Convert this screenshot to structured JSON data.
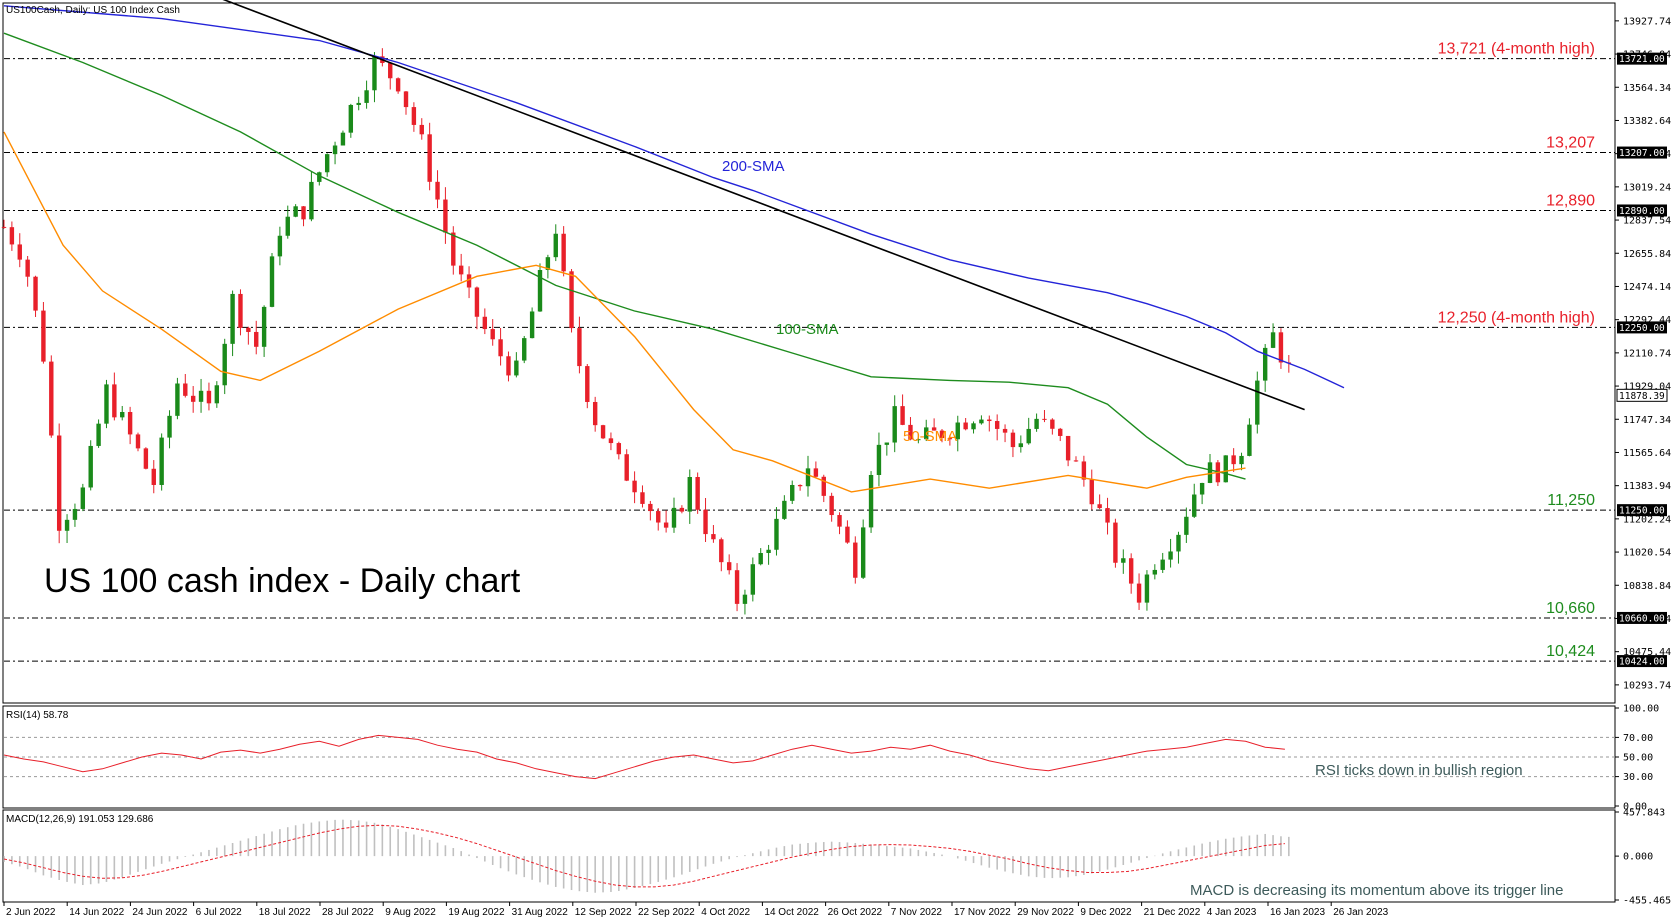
{
  "window": {
    "main_title": "US100Cash, Daily:  US 100 Index Cash",
    "rsi_title": "RSI(14) 58.78",
    "macd_title": "MACD(12,26,9) 191.053 129.686"
  },
  "chart_data": [
    {
      "type": "candlestick",
      "title": "US 100 cash index - Daily chart",
      "ylim": [
        10200,
        14020
      ],
      "y_ticks": [
        "13927.74",
        "13746.04",
        "13564.34",
        "13382.64",
        "13200.94",
        "13019.24",
        "12837.54",
        "12655.84",
        "12474.14",
        "12292.44",
        "12110.74",
        "11929.04",
        "11747.34",
        "11565.64",
        "11383.94",
        "11202.24",
        "11020.54",
        "10838.84",
        "10657.14",
        "10475.44",
        "10293.74"
      ],
      "x_ticks": [
        "2 Jun 2022",
        "14 Jun 2022",
        "24 Jun 2022",
        "6 Jul 2022",
        "18 Jul 2022",
        "28 Jul 2022",
        "9 Aug 2022",
        "19 Aug 2022",
        "31 Aug 2022",
        "12 Sep 2022",
        "22 Sep 2022",
        "4 Oct 2022",
        "14 Oct 2022",
        "26 Oct 2022",
        "7 Nov 2022",
        "17 Nov 2022",
        "29 Nov 2022",
        "9 Dec 2022",
        "21 Dec 2022",
        "4 Jan 2023",
        "16 Jan 2023",
        "26 Jan 2023"
      ],
      "current_price": "11878.39",
      "levels": [
        {
          "value": 13721,
          "tag": "13721.00",
          "label": "13,721 (4-month high)",
          "color": "#e8202a"
        },
        {
          "value": 13207,
          "tag": "13207.00",
          "label": "13,207",
          "color": "#e8202a"
        },
        {
          "value": 12890,
          "tag": "12890.00",
          "label": "12,890",
          "color": "#e8202a"
        },
        {
          "value": 12250,
          "tag": "12250.00",
          "label": "12,250 (4-month high)",
          "color": "#e8202a"
        },
        {
          "value": 11250,
          "tag": "11250.00",
          "label": "11,250",
          "color": "#1e8c1e"
        },
        {
          "value": 10660,
          "tag": "10660.00",
          "label": "10,660",
          "color": "#1e8c1e"
        },
        {
          "value": 10424,
          "tag": "10424.00",
          "label": "10,424",
          "color": "#1e8c1e"
        }
      ],
      "series": [
        {
          "name": "200-SMA",
          "color": "#2424d8",
          "points": [
            [
              0,
              14010
            ],
            [
              40,
              13940
            ],
            [
              80,
              13820
            ],
            [
              100,
              13700
            ],
            [
              130,
              13480
            ],
            [
              160,
              13240
            ],
            [
              180,
              13070
            ],
            [
              190,
              13000
            ],
            [
              200,
              12920
            ],
            [
              220,
              12760
            ],
            [
              240,
              12620
            ],
            [
              260,
              12520
            ],
            [
              280,
              12440
            ],
            [
              290,
              12380
            ],
            [
              300,
              12310
            ],
            [
              310,
              12220
            ],
            [
              318,
              12120
            ],
            [
              330,
              12020
            ],
            [
              340,
              11920
            ]
          ]
        },
        {
          "name": "100-SMA",
          "color": "#1e8c1e",
          "points": [
            [
              0,
              13860
            ],
            [
              20,
              13700
            ],
            [
              40,
              13520
            ],
            [
              60,
              13320
            ],
            [
              80,
              13080
            ],
            [
              100,
              12880
            ],
            [
              120,
              12700
            ],
            [
              140,
              12480
            ],
            [
              160,
              12340
            ],
            [
              180,
              12240
            ],
            [
              200,
              12110
            ],
            [
              220,
              11980
            ],
            [
              240,
              11960
            ],
            [
              255,
              11950
            ],
            [
              270,
              11920
            ],
            [
              280,
              11830
            ],
            [
              290,
              11650
            ],
            [
              300,
              11500
            ],
            [
              310,
              11450
            ],
            [
              315,
              11420
            ]
          ]
        },
        {
          "name": "50-SMA",
          "color": "#ff8c00",
          "points": [
            [
              0,
              13320
            ],
            [
              15,
              12700
            ],
            [
              25,
              12450
            ],
            [
              40,
              12240
            ],
            [
              55,
              12010
            ],
            [
              65,
              11960
            ],
            [
              80,
              12120
            ],
            [
              100,
              12350
            ],
            [
              120,
              12530
            ],
            [
              135,
              12590
            ],
            [
              145,
              12530
            ],
            [
              160,
              12200
            ],
            [
              175,
              11800
            ],
            [
              185,
              11580
            ],
            [
              195,
              11520
            ],
            [
              215,
              11350
            ],
            [
              235,
              11420
            ],
            [
              250,
              11370
            ],
            [
              270,
              11440
            ],
            [
              290,
              11370
            ],
            [
              300,
              11430
            ],
            [
              315,
              11480
            ]
          ]
        },
        {
          "name": "trendline",
          "color": "#000000",
          "points": [
            [
              55,
              14050
            ],
            [
              330,
              11800
            ]
          ]
        }
      ]
    },
    {
      "type": "line",
      "title": "RSI(14) 58.78",
      "ylim": [
        0,
        100
      ],
      "y_ticks": [
        "100.00",
        "70.00",
        "50.00",
        "30.00",
        "0.00"
      ],
      "levels": [
        70,
        50,
        30
      ],
      "annotation": "RSI ticks down in bullish region",
      "series": [
        {
          "name": "RSI(14)",
          "color": "#e8202a",
          "values": [
            52,
            48,
            45,
            40,
            35,
            38,
            44,
            50,
            54,
            52,
            48,
            55,
            57,
            54,
            58,
            63,
            66,
            61,
            68,
            72,
            70,
            68,
            62,
            58,
            55,
            48,
            44,
            38,
            34,
            30,
            28,
            34,
            40,
            46,
            50,
            52,
            48,
            44,
            46,
            52,
            58,
            62,
            58,
            54,
            56,
            60,
            58,
            62,
            56,
            52,
            46,
            42,
            38,
            36,
            40,
            44,
            48,
            52,
            56,
            58,
            60,
            64,
            68,
            66,
            60,
            58
          ]
        }
      ]
    },
    {
      "type": "bar",
      "title": "MACD(12,26,9) 191.053 129.686",
      "ylim": [
        -455.465,
        457.843
      ],
      "y_ticks": [
        "457.843",
        "0.000",
        "-455.465"
      ],
      "annotation": "MACD is decreasing its momentum above its trigger line",
      "series": [
        {
          "name": "MACD",
          "color": "#c0c0c0",
          "values": [
            -60,
            -120,
            -200,
            -260,
            -300,
            -280,
            -220,
            -150,
            -80,
            -20,
            40,
            100,
            160,
            220,
            280,
            330,
            360,
            380,
            370,
            340,
            280,
            210,
            140,
            70,
            -20,
            -110,
            -190,
            -260,
            -320,
            -360,
            -380,
            -370,
            -330,
            -280,
            -220,
            -150,
            -80,
            -20,
            30,
            80,
            120,
            140,
            150,
            140,
            120,
            100,
            80,
            40,
            0,
            -60,
            -120,
            -170,
            -210,
            -230,
            -220,
            -190,
            -140,
            -80,
            -20,
            40,
            90,
            140,
            180,
            210,
            230,
            200
          ]
        },
        {
          "name": "Signal",
          "color": "#e8202a",
          "values": [
            -30,
            -70,
            -120,
            -170,
            -210,
            -230,
            -225,
            -200,
            -160,
            -110,
            -60,
            -10,
            40,
            90,
            140,
            190,
            240,
            280,
            310,
            320,
            310,
            280,
            240,
            190,
            130,
            60,
            -10,
            -80,
            -150,
            -210,
            -260,
            -300,
            -320,
            -320,
            -300,
            -260,
            -210,
            -160,
            -110,
            -60,
            -10,
            30,
            70,
            100,
            115,
            120,
            115,
            100,
            80,
            50,
            10,
            -30,
            -80,
            -120,
            -150,
            -170,
            -170,
            -160,
            -130,
            -90,
            -50,
            -10,
            30,
            70,
            110,
            130
          ]
        }
      ]
    }
  ]
}
